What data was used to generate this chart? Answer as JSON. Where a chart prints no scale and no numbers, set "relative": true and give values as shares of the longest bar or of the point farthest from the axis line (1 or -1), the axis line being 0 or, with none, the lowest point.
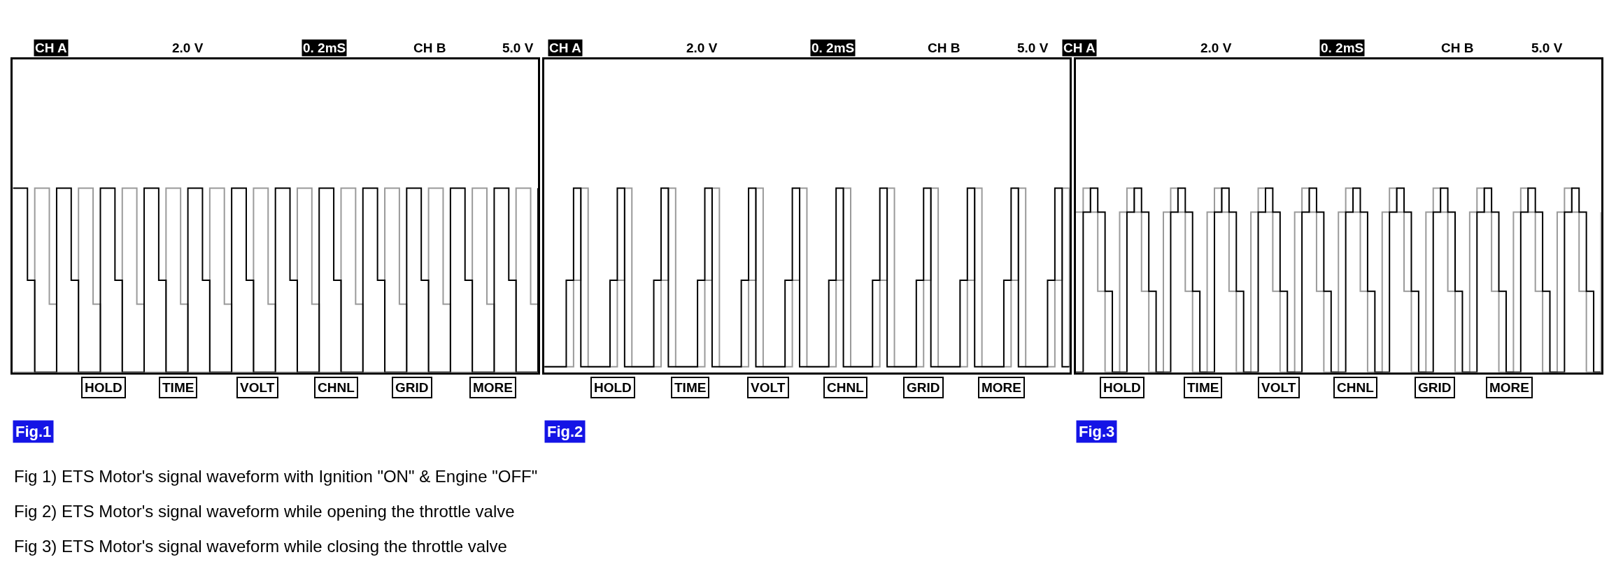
{
  "chart_data": [
    {
      "type": "step",
      "title": "Fig.1",
      "relative": true,
      "annotations": [
        "CH A",
        "2.0 V",
        "0. 2mS",
        "CH B",
        "5.0 V",
        "HOLD",
        "TIME",
        "VOLT",
        "CHNL",
        "GRID",
        "MORE",
        "Fig 1) ETS Motor's signal waveform with Ignition \"ON\" & Engine \"OFF\"",
        "Fig 2) ETS Motor's signal waveform while opening the throttle valve",
        "Fig 3) ETS Motor's signal waveform while closing the throttle valve"
      ],
      "categories": [
        null,
        null,
        null,
        null,
        null,
        null,
        null,
        null,
        null,
        null,
        null,
        null,
        null,
        null,
        null,
        null,
        null,
        null,
        null,
        null,
        null,
        null,
        null,
        null,
        null,
        null,
        null,
        null,
        null,
        null,
        null,
        null,
        null,
        null,
        null,
        null,
        null,
        null,
        null,
        null,
        null,
        null,
        null,
        null,
        null,
        null,
        null,
        null,
        null,
        null,
        null,
        null,
        null,
        null,
        null,
        null,
        null,
        null,
        null,
        null,
        null,
        null,
        null,
        null,
        null,
        null,
        null,
        null,
        null,
        null,
        null,
        null,
        null
      ],
      "series": [
        {
          "color": "#9a9a9a",
          "values": [
            0,
            0,
            0,
            1,
            1,
            0.37,
            0,
            0,
            0,
            1,
            1,
            0.37,
            0,
            0,
            0,
            1,
            1,
            0.37,
            0,
            0,
            0,
            1,
            1,
            0.37,
            0,
            0,
            0,
            1,
            1,
            0.37,
            0,
            0,
            0,
            1,
            1,
            0.37,
            0,
            0,
            0,
            1,
            1,
            0.37,
            0,
            0,
            0,
            1,
            1,
            0.37,
            0,
            0,
            0,
            1,
            1,
            0.37,
            0,
            0,
            0,
            1,
            1,
            0.37,
            0,
            0,
            0,
            1,
            1,
            0.37,
            0,
            0,
            0,
            1,
            1,
            0.37,
            0
          ]
        },
        {
          "color": "#000000",
          "values": [
            1,
            1,
            0.5,
            0,
            0,
            0,
            1,
            1,
            0.5,
            0,
            0,
            0,
            1,
            1,
            0.5,
            0,
            0,
            0,
            1,
            1,
            0.5,
            0,
            0,
            0,
            1,
            1,
            0.5,
            0,
            0,
            0,
            1,
            1,
            0.5,
            0,
            0,
            0,
            1,
            1,
            0.5,
            0,
            0,
            0,
            1,
            1,
            0.5,
            0,
            0,
            0,
            1,
            1,
            0.5,
            0,
            0,
            0,
            1,
            1,
            0.5,
            0,
            0,
            0,
            1,
            1,
            0.5,
            0,
            0,
            0,
            1,
            1,
            0.5,
            0,
            0,
            0,
            1
          ]
        }
      ]
    },
    {
      "type": "step",
      "title": "Fig.2",
      "relative": true,
      "annotations": [
        "CH A",
        "2.0 V",
        "0. 2mS",
        "CH B",
        "5.0 V",
        "HOLD",
        "TIME",
        "VOLT",
        "CHNL",
        "GRID",
        "MORE"
      ],
      "categories": [
        null,
        null,
        null,
        null,
        null,
        null,
        null,
        null,
        null,
        null,
        null,
        null,
        null,
        null,
        null,
        null,
        null,
        null,
        null,
        null,
        null,
        null,
        null,
        null,
        null,
        null,
        null,
        null,
        null,
        null,
        null,
        null,
        null,
        null,
        null,
        null,
        null,
        null,
        null,
        null,
        null,
        null,
        null,
        null,
        null,
        null,
        null,
        null,
        null,
        null,
        null,
        null,
        null,
        null,
        null,
        null,
        null,
        null,
        null,
        null,
        null,
        null,
        null,
        null,
        null,
        null,
        null,
        null,
        null,
        null,
        null,
        null,
        null
      ],
      "series": [
        {
          "color": "#9a9a9a",
          "values": [
            0.03,
            0.03,
            0.03,
            0.03,
            0.5,
            1,
            0.03,
            0.03,
            0.03,
            0.03,
            0.5,
            1,
            0.03,
            0.03,
            0.03,
            0.03,
            0.5,
            1,
            0.03,
            0.03,
            0.03,
            0.03,
            0.5,
            1,
            0.03,
            0.03,
            0.03,
            0.03,
            0.5,
            1,
            0.03,
            0.03,
            0.03,
            0.03,
            0.5,
            1,
            0.03,
            0.03,
            0.03,
            0.03,
            0.5,
            1,
            0.03,
            0.03,
            0.03,
            0.03,
            0.5,
            1,
            0.03,
            0.03,
            0.03,
            0.03,
            0.5,
            1,
            0.03,
            0.03,
            0.03,
            0.03,
            0.5,
            1,
            0.03,
            0.03,
            0.03,
            0.03,
            0.5,
            1,
            0.03,
            0.03,
            0.03,
            0.03,
            0.5,
            1,
            0.03
          ]
        },
        {
          "color": "#000000",
          "values": [
            0.03,
            0.03,
            0.03,
            0.5,
            1,
            0.03,
            0.03,
            0.03,
            0.03,
            0.5,
            1,
            0.03,
            0.03,
            0.03,
            0.03,
            0.5,
            1,
            0.03,
            0.03,
            0.03,
            0.03,
            0.5,
            1,
            0.03,
            0.03,
            0.03,
            0.03,
            0.5,
            1,
            0.03,
            0.03,
            0.03,
            0.03,
            0.5,
            1,
            0.03,
            0.03,
            0.03,
            0.03,
            0.5,
            1,
            0.03,
            0.03,
            0.03,
            0.03,
            0.5,
            1,
            0.03,
            0.03,
            0.03,
            0.03,
            0.5,
            1,
            0.03,
            0.03,
            0.03,
            0.03,
            0.5,
            1,
            0.03,
            0.03,
            0.03,
            0.03,
            0.5,
            1,
            0.03,
            0.03,
            0.03,
            0.03,
            0.5,
            1,
            0.03,
            0.03
          ]
        }
      ]
    },
    {
      "type": "step",
      "title": "Fig.3",
      "relative": true,
      "annotations": [
        "CH A",
        "2.0 V",
        "0. 2mS",
        "CH B",
        "5.0 V",
        "HOLD",
        "TIME",
        "VOLT",
        "CHNL",
        "GRID",
        "MORE"
      ],
      "categories": [
        null,
        null,
        null,
        null,
        null,
        null,
        null,
        null,
        null,
        null,
        null,
        null,
        null,
        null,
        null,
        null,
        null,
        null,
        null,
        null,
        null,
        null,
        null,
        null,
        null,
        null,
        null,
        null,
        null,
        null,
        null,
        null,
        null,
        null,
        null,
        null,
        null,
        null,
        null,
        null,
        null,
        null,
        null,
        null,
        null,
        null,
        null,
        null,
        null,
        null,
        null,
        null,
        null,
        null,
        null,
        null,
        null,
        null,
        null,
        null,
        null,
        null,
        null,
        null,
        null,
        null,
        null,
        null,
        null,
        null,
        null,
        null,
        null
      ],
      "series": [
        {
          "color": "#9a9a9a",
          "values": [
            0.87,
            1,
            0.87,
            0.44,
            0,
            0,
            0.87,
            1,
            0.87,
            0.44,
            0,
            0,
            0.87,
            1,
            0.87,
            0.44,
            0,
            0,
            0.87,
            1,
            0.87,
            0.44,
            0,
            0,
            0.87,
            1,
            0.87,
            0.44,
            0,
            0,
            0.87,
            1,
            0.87,
            0.44,
            0,
            0,
            0.87,
            1,
            0.87,
            0.44,
            0,
            0,
            0.87,
            1,
            0.87,
            0.44,
            0,
            0,
            0.87,
            1,
            0.87,
            0.44,
            0,
            0,
            0.87,
            1,
            0.87,
            0.44,
            0,
            0,
            0.87,
            1,
            0.87,
            0.44,
            0,
            0,
            0.87,
            1,
            0.87,
            0.44,
            0,
            0,
            0.87
          ]
        },
        {
          "color": "#000000",
          "values": [
            0,
            0.87,
            1,
            0.87,
            0.44,
            0,
            0,
            0.87,
            1,
            0.87,
            0.44,
            0,
            0,
            0.87,
            1,
            0.87,
            0.44,
            0,
            0,
            0.87,
            1,
            0.87,
            0.44,
            0,
            0,
            0.87,
            1,
            0.87,
            0.44,
            0,
            0,
            0.87,
            1,
            0.87,
            0.44,
            0,
            0,
            0.87,
            1,
            0.87,
            0.44,
            0,
            0,
            0.87,
            1,
            0.87,
            0.44,
            0,
            0,
            0.87,
            1,
            0.87,
            0.44,
            0,
            0,
            0.87,
            1,
            0.87,
            0.44,
            0,
            0,
            0.87,
            1,
            0.87,
            0.44,
            0,
            0,
            0.87,
            1,
            0.87,
            0.44,
            0,
            0
          ]
        }
      ]
    }
  ]
}
